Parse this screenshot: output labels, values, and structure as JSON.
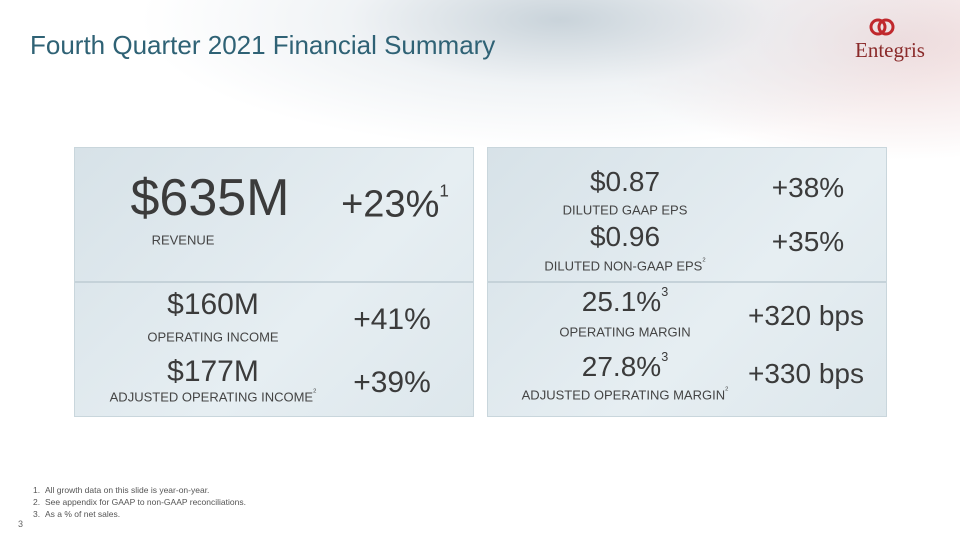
{
  "header": {
    "title": "Fourth Quarter 2021 Financial Summary",
    "logo": "Entegris"
  },
  "panels": [
    {
      "sections": [
        {
          "items": [
            {
              "value": "$635M",
              "label": "REVENUE",
              "growth": "+23%",
              "growth_note": "1"
            }
          ]
        },
        {
          "items": [
            {
              "value": "$160M",
              "label": "OPERATING INCOME",
              "growth": "+41%"
            },
            {
              "value": "$177M",
              "label": "ADJUSTED OPERATING INCOME",
              "label_note": "2",
              "growth": "+39%"
            }
          ]
        }
      ]
    },
    {
      "sections": [
        {
          "items": [
            {
              "value": "$0.87",
              "label": "DILUTED GAAP EPS",
              "growth": "+38%"
            },
            {
              "value": "$0.96",
              "label": "DILUTED NON-GAAP EPS",
              "label_note": "2",
              "growth": "+35%"
            }
          ]
        },
        {
          "items": [
            {
              "value": "25.1%",
              "value_note": "3",
              "label": "OPERATING MARGIN",
              "growth": "+320 bps"
            },
            {
              "value": "27.8%",
              "value_note": "3",
              "label": "ADJUSTED OPERATING MARGIN",
              "label_note": "2",
              "growth": "+330 bps"
            }
          ]
        }
      ]
    }
  ],
  "footnotes": [
    {
      "number": "1.",
      "text": "All growth data on this slide is year-on-year."
    },
    {
      "number": "2.",
      "text": "See appendix for GAAP to non-GAAP reconciliations."
    },
    {
      "number": "3.",
      "text": "As a % of net sales."
    }
  ],
  "page_number": "3"
}
